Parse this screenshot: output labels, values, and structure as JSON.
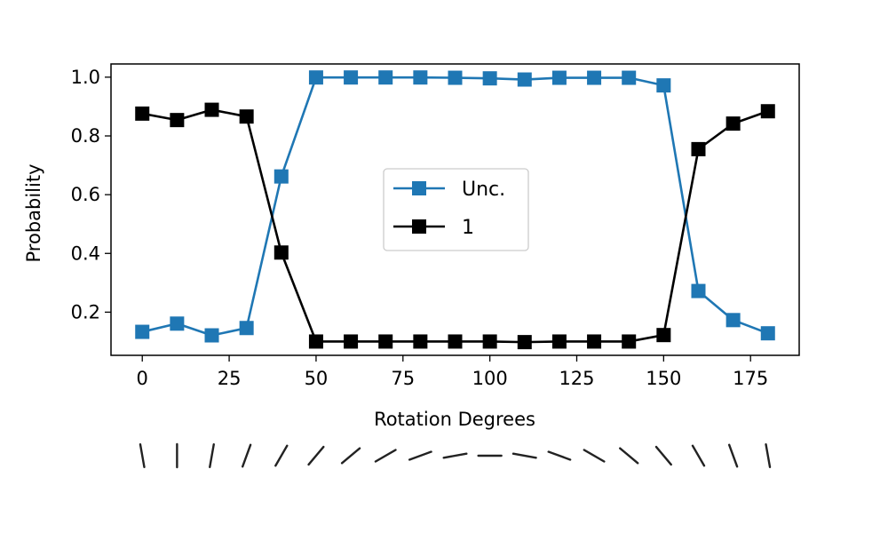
{
  "chart_data": {
    "type": "line",
    "title": "",
    "xlabel": "Rotation Degrees",
    "ylabel": "Probability",
    "xlim": [
      -9,
      189
    ],
    "ylim": [
      0.053,
      1.045
    ],
    "xticks": [
      0,
      25,
      50,
      75,
      100,
      125,
      150,
      175
    ],
    "yticks": [
      0.2,
      0.4,
      0.6,
      0.8,
      1.0
    ],
    "xtick_labels": [
      "0",
      "25",
      "50",
      "75",
      "100",
      "125",
      "150",
      "175"
    ],
    "ytick_labels": [
      "0.2",
      "0.4",
      "0.6",
      "0.8",
      "1.0"
    ],
    "x": [
      0,
      10,
      20,
      30,
      40,
      50,
      60,
      70,
      80,
      90,
      100,
      110,
      120,
      130,
      140,
      150,
      160,
      170,
      180
    ],
    "series": [
      {
        "name": "Unc.",
        "color": "#1f77b4",
        "marker": "square",
        "values": [
          0.133,
          0.161,
          0.121,
          0.146,
          0.662,
          0.999,
          0.999,
          0.999,
          0.999,
          0.998,
          0.996,
          0.992,
          0.998,
          0.998,
          0.998,
          0.972,
          0.272,
          0.173,
          0.128
        ]
      },
      {
        "name": "1",
        "color": "#000000",
        "marker": "square",
        "values": [
          0.876,
          0.854,
          0.889,
          0.866,
          0.403,
          0.1,
          0.1,
          0.1,
          0.1,
          0.1,
          0.1,
          0.098,
          0.1,
          0.1,
          0.1,
          0.122,
          0.755,
          0.842,
          0.884
        ]
      }
    ],
    "legend_position": "center",
    "grid": false,
    "rotation_glyph_color": "#222222"
  }
}
